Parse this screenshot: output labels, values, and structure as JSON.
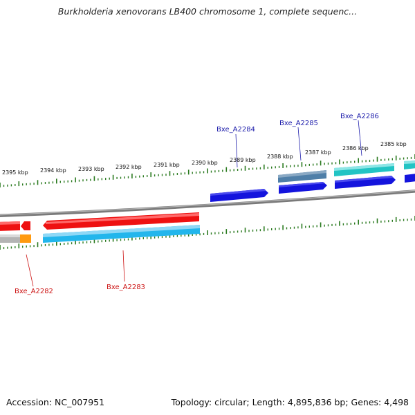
{
  "title": "Burkholderia xenovorans LB400 chromosome 1, complete sequenc...",
  "footer": {
    "accession": "Accession: NC_007951",
    "summary": "Topology: circular; Length: 4,895,836 bp; Genes: 4,498"
  },
  "scale_labels": [
    "2395 kbp",
    "2394 kbp",
    "2393 kbp",
    "2392 kbp",
    "2391 kbp",
    "2390 kbp",
    "2389 kbp",
    "2388 kbp",
    "2387 kbp",
    "2386 kbp",
    "2385 kbp"
  ],
  "gene_labels": {
    "top": [
      "Bxe_A2284",
      "Bxe_A2285",
      "Bxe_A2286"
    ],
    "bottom": [
      "Bxe_A2282",
      "Bxe_A2283"
    ]
  },
  "colors": {
    "backbone": "#8a8a8a",
    "tick": "#2a7a1f",
    "top_label": "#1a1aaa",
    "bottom_label": "#cc1111",
    "cds_forward": "#1414dd",
    "cds_reverse": "#ee1111",
    "gene_forward_steel": "#4f7fa8",
    "gene_forward_teal": "#22c4c4",
    "gene_reverse_sky": "#22b6ec",
    "gene_reverse_grey": "#b4b4b4",
    "gene_orange": "#ff9a10"
  }
}
